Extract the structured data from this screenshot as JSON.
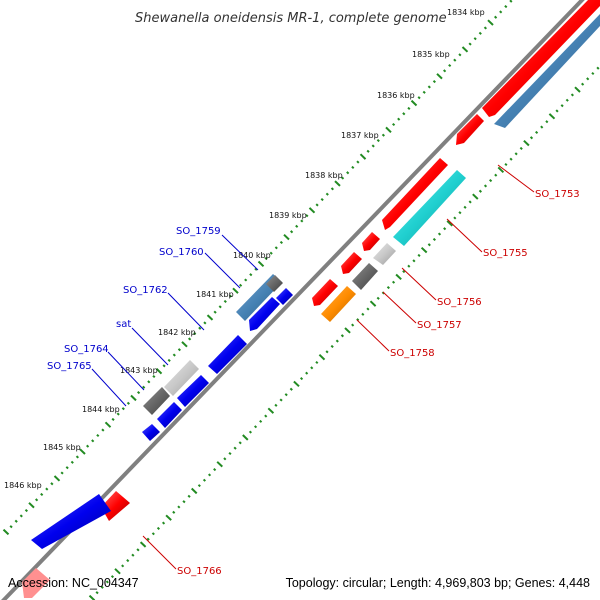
{
  "title": "Shewanella oneidensis MR-1, complete genome",
  "footer": {
    "accession": "Accession: NC_004347",
    "summary": "Topology: circular; Length: 4,969,803 bp; Genes: 4,448"
  },
  "colors": {
    "backbone": "#808080",
    "tick_major": "#228b22",
    "label_forward": "#0000cc",
    "label_reverse": "#cc0000",
    "gene_red": "#ff0000",
    "gene_blue": "#0000ee",
    "gene_steel": "#4682b4",
    "gene_cyan": "#20d0d0",
    "gene_orange": "#ff8c00",
    "gene_darkgray": "#666666",
    "gene_lightgray": "#c8c8c8"
  },
  "kbp_labels": [
    "1834 kbp",
    "1835 kbp",
    "1836 kbp",
    "1837 kbp",
    "1838 kbp",
    "1839 kbp",
    "1840 kbp",
    "1841 kbp",
    "1842 kbp",
    "1843 kbp",
    "1844 kbp",
    "1845 kbp",
    "1846 kbp"
  ],
  "gene_labels_reverse": [
    "SO_1753",
    "SO_1755",
    "SO_1756",
    "SO_1757",
    "SO_1758",
    "SO_1766"
  ],
  "gene_labels_forward": [
    "SO_1759",
    "SO_1760",
    "SO_1762",
    "sat",
    "SO_1764",
    "SO_1765"
  ]
}
